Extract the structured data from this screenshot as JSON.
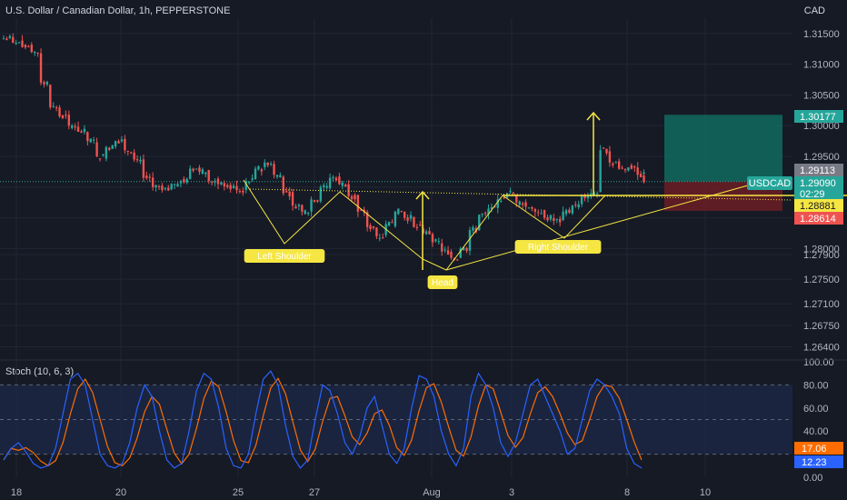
{
  "header": {
    "title": "U.S. Dollar / Canadian Dollar, 1h, PEPPERSTONE",
    "currency": "CAD"
  },
  "indicator": {
    "label": "Stoch (10, 6, 3)"
  },
  "colors": {
    "background": "#161a25",
    "candle_up": "#26a69a",
    "candle_down": "#ef5350",
    "pattern": "#f5e642",
    "target_zone": "#0f6b5e",
    "stop_zone": "#6b1f24",
    "stoch_k": "#2962ff",
    "stoch_d": "#ff6d00"
  },
  "chart_data": [
    {
      "type": "candlestick",
      "series_name": "USDCAD",
      "ylim": [
        1.262,
        1.3175
      ],
      "price_ticks": [
        "1.31500",
        "1.31000",
        "1.30500",
        "1.30000",
        "1.29500",
        "1.29000",
        "1.28500",
        "1.28000",
        "1.27900",
        "1.27500",
        "1.27100",
        "1.26750",
        "1.26400"
      ],
      "x_ticks": [
        "18",
        "20",
        "25",
        "27",
        "Aug",
        "3",
        "8",
        "10"
      ],
      "price_tags": [
        {
          "label": "1.30177",
          "bg": "#26a69a",
          "fg": "#ffffff"
        },
        {
          "label": "1.29113",
          "bg": "#787b86",
          "fg": "#ffffff"
        },
        {
          "label": "1.29090",
          "bg": "#26a69a",
          "fg": "#ffffff"
        },
        {
          "label": "02:29",
          "bg": "#26a69a",
          "fg": "#ffffff"
        },
        {
          "label": "1.28881",
          "bg": "#f5e642",
          "fg": "#131722"
        },
        {
          "label": "1.28614",
          "bg": "#ef5350",
          "fg": "#ffffff"
        }
      ],
      "symbol_tag": "USDCAD",
      "pattern_labels": [
        "Left Shoulder",
        "Head",
        "Right Shoulder"
      ],
      "close_path": [
        [
          0,
          1.3142
        ],
        [
          3,
          1.3135
        ],
        [
          6,
          1.3128
        ],
        [
          9,
          1.312
        ],
        [
          12,
          1.307
        ],
        [
          15,
          1.303
        ],
        [
          18,
          1.3015
        ],
        [
          21,
          1.3
        ],
        [
          24,
          1.299
        ],
        [
          27,
          1.2975
        ],
        [
          30,
          1.295
        ],
        [
          33,
          1.2965
        ],
        [
          36,
          1.2975
        ],
        [
          39,
          1.296
        ],
        [
          42,
          1.2945
        ],
        [
          45,
          1.2915
        ],
        [
          48,
          1.29
        ],
        [
          51,
          1.2895
        ],
        [
          54,
          1.2905
        ],
        [
          57,
          1.291
        ],
        [
          60,
          1.293
        ],
        [
          63,
          1.2925
        ],
        [
          66,
          1.291
        ],
        [
          69,
          1.2905
        ],
        [
          72,
          1.29
        ],
        [
          75,
          1.2895
        ],
        [
          78,
          1.291
        ],
        [
          81,
          1.293
        ],
        [
          84,
          1.294
        ],
        [
          87,
          1.292
        ],
        [
          90,
          1.289
        ],
        [
          93,
          1.287
        ],
        [
          96,
          1.286
        ],
        [
          99,
          1.288
        ],
        [
          102,
          1.29
        ],
        [
          105,
          1.2915
        ],
        [
          108,
          1.2905
        ],
        [
          111,
          1.2885
        ],
        [
          114,
          1.286
        ],
        [
          117,
          1.2835
        ],
        [
          120,
          1.282
        ],
        [
          123,
          1.284
        ],
        [
          126,
          1.286
        ],
        [
          129,
          1.285
        ],
        [
          132,
          1.2835
        ],
        [
          135,
          1.2825
        ],
        [
          138,
          1.281
        ],
        [
          141,
          1.2795
        ],
        [
          144,
          1.2785
        ],
        [
          147,
          1.28
        ],
        [
          150,
          1.283
        ],
        [
          153,
          1.2855
        ],
        [
          156,
          1.2865
        ],
        [
          159,
          1.288
        ],
        [
          162,
          1.289
        ],
        [
          165,
          1.2875
        ],
        [
          168,
          1.2868
        ],
        [
          171,
          1.286
        ],
        [
          174,
          1.285
        ],
        [
          177,
          1.2845
        ],
        [
          180,
          1.286
        ],
        [
          183,
          1.287
        ],
        [
          186,
          1.2885
        ],
        [
          189,
          1.289
        ],
        [
          192,
          1.296
        ],
        [
          195,
          1.294
        ],
        [
          198,
          1.293
        ],
        [
          201,
          1.2932
        ],
        [
          204,
          1.292
        ],
        [
          206,
          1.2908
        ]
      ]
    },
    {
      "type": "line",
      "title": "Stoch (10, 6, 3)",
      "ylim": [
        0,
        100
      ],
      "y_ticks": [
        "100.00",
        "80.00",
        "60.00",
        "40.00",
        "0.00"
      ],
      "levels": [
        80,
        50,
        20
      ],
      "series": [
        {
          "name": "%K",
          "last": 12.23
        },
        {
          "name": "%D",
          "last": 17.06
        }
      ],
      "value_tags": [
        {
          "label": "17.06",
          "bg": "#ff6d00"
        },
        {
          "label": "12.23",
          "bg": "#2962ff"
        }
      ],
      "k_values": [
        15,
        25,
        30,
        22,
        12,
        8,
        10,
        25,
        55,
        85,
        90,
        80,
        50,
        20,
        10,
        8,
        12,
        30,
        60,
        80,
        70,
        40,
        15,
        8,
        12,
        40,
        75,
        90,
        85,
        60,
        25,
        10,
        8,
        20,
        55,
        85,
        92,
        80,
        45,
        18,
        8,
        15,
        50,
        80,
        75,
        55,
        30,
        20,
        35,
        60,
        70,
        45,
        20,
        12,
        25,
        60,
        88,
        85,
        70,
        40,
        20,
        10,
        25,
        70,
        90,
        80,
        60,
        30,
        18,
        30,
        55,
        80,
        85,
        70,
        55,
        40,
        20,
        25,
        50,
        75,
        85,
        80,
        70,
        55,
        25,
        12,
        8
      ]
    }
  ]
}
